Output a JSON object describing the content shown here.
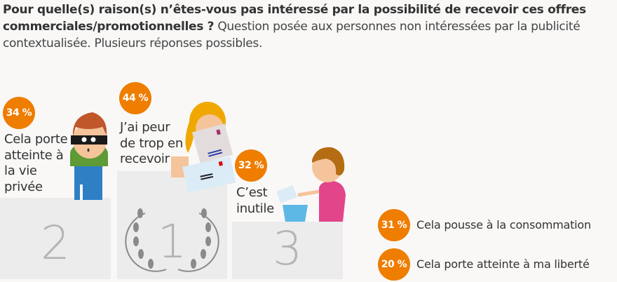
{
  "header": {
    "question_bold": "Pour quelle(s) raison(s) n’êtes-vous pas intéressé par la possibilité de recevoir ces offres commerciales/promotionnelles ?",
    "note": "Question posée aux personnes non intéressées par la publicité contextualisée. Plusieurs réponses possibles."
  },
  "colors": {
    "accent": "#ee7d00",
    "podium": "#ececec",
    "background": "#f9f8f7"
  },
  "chart_data": {
    "type": "bar",
    "title": "Pour quelle(s) raison(s) n’êtes-vous pas intéressé par la possibilité de recevoir ces offres commerciales/promotionnelles ?",
    "unit": "%",
    "categories": [
      "J’ai peur de trop en recevoir",
      "Cela porte atteinte à la vie privée",
      "C’est inutile",
      "Cela pousse à la consommation",
      "Cela porte atteinte à ma liberté"
    ],
    "values": [
      44,
      34,
      32,
      31,
      20
    ],
    "value_labels": [
      "44 %",
      "34 %",
      "32 %",
      "31 %",
      "20 %"
    ],
    "ranks": [
      "1",
      "2",
      "3"
    ]
  }
}
